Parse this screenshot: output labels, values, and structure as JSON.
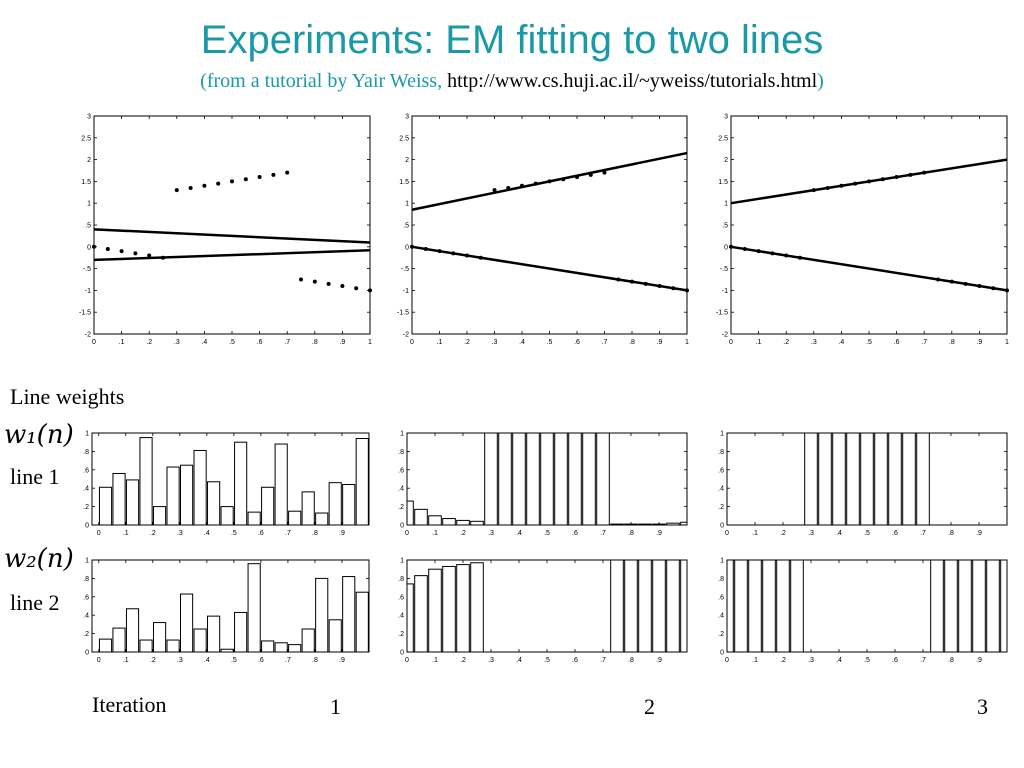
{
  "header": {
    "title": "Experiments: EM fitting to two lines",
    "subtitle_open": "(",
    "subtitle_credit": "from a tutorial by Yair Weiss, ",
    "subtitle_url": "http://www.cs.huji.ac.il/~yweiss/tutorials.html",
    "subtitle_close": ")"
  },
  "labels": {
    "line_weights": "Line weights",
    "w1": "w₁(n)",
    "w2": "w₂(n)",
    "line1": "line 1",
    "line2": "line 2",
    "iteration": "Iteration",
    "iterations": [
      "1",
      "2",
      "3"
    ]
  },
  "chart_data": [
    {
      "type": "scatter",
      "name": "iteration-1-fit",
      "xlim": [
        0,
        1
      ],
      "ylim": [
        -2,
        3
      ],
      "xticks": [
        0,
        0.1,
        0.2,
        0.3,
        0.4,
        0.5,
        0.6,
        0.7,
        0.8,
        0.9,
        1
      ],
      "yticks": [
        -2,
        -1.5,
        -1,
        -0.5,
        0,
        0.5,
        1,
        1.5,
        2,
        2.5,
        3
      ],
      "points": {
        "x": [
          0,
          0.05,
          0.1,
          0.15,
          0.2,
          0.25,
          0.3,
          0.35,
          0.4,
          0.45,
          0.5,
          0.55,
          0.6,
          0.65,
          0.7,
          0.75,
          0.8,
          0.85,
          0.9,
          0.95,
          1
        ],
        "y": [
          0,
          -0.05,
          -0.1,
          -0.15,
          -0.2,
          -0.25,
          1.3,
          1.35,
          1.4,
          1.45,
          1.5,
          1.55,
          1.6,
          1.65,
          1.7,
          -0.75,
          -0.8,
          -0.85,
          -0.9,
          -0.95,
          -1
        ]
      },
      "lines": [
        {
          "x": [
            0,
            1
          ],
          "y": [
            0.4,
            0.1
          ]
        },
        {
          "x": [
            0,
            1
          ],
          "y": [
            -0.3,
            -0.08
          ]
        }
      ]
    },
    {
      "type": "scatter",
      "name": "iteration-2-fit",
      "xlim": [
        0,
        1
      ],
      "ylim": [
        -2,
        3
      ],
      "xticks": [
        0,
        0.1,
        0.2,
        0.3,
        0.4,
        0.5,
        0.6,
        0.7,
        0.8,
        0.9,
        1
      ],
      "yticks": [
        -2,
        -1.5,
        -1,
        -0.5,
        0,
        0.5,
        1,
        1.5,
        2,
        2.5,
        3
      ],
      "points": {
        "x": [
          0,
          0.05,
          0.1,
          0.15,
          0.2,
          0.25,
          0.3,
          0.35,
          0.4,
          0.45,
          0.5,
          0.55,
          0.6,
          0.65,
          0.7,
          0.75,
          0.8,
          0.85,
          0.9,
          0.95,
          1
        ],
        "y": [
          0,
          -0.05,
          -0.1,
          -0.15,
          -0.2,
          -0.25,
          1.3,
          1.35,
          1.4,
          1.45,
          1.5,
          1.55,
          1.6,
          1.65,
          1.7,
          -0.75,
          -0.8,
          -0.85,
          -0.9,
          -0.95,
          -1
        ]
      },
      "lines": [
        {
          "x": [
            0,
            1
          ],
          "y": [
            0.85,
            2.15
          ]
        },
        {
          "x": [
            0,
            1
          ],
          "y": [
            0,
            -1
          ]
        }
      ]
    },
    {
      "type": "scatter",
      "name": "iteration-3-fit",
      "xlim": [
        0,
        1
      ],
      "ylim": [
        -2,
        3
      ],
      "xticks": [
        0,
        0.1,
        0.2,
        0.3,
        0.4,
        0.5,
        0.6,
        0.7,
        0.8,
        0.9,
        1
      ],
      "yticks": [
        -2,
        -1.5,
        -1,
        -0.5,
        0,
        0.5,
        1,
        1.5,
        2,
        2.5,
        3
      ],
      "points": {
        "x": [
          0,
          0.05,
          0.1,
          0.15,
          0.2,
          0.25,
          0.3,
          0.35,
          0.4,
          0.45,
          0.5,
          0.55,
          0.6,
          0.65,
          0.7,
          0.75,
          0.8,
          0.85,
          0.9,
          0.95,
          1
        ],
        "y": [
          0,
          -0.05,
          -0.1,
          -0.15,
          -0.2,
          -0.25,
          1.3,
          1.35,
          1.4,
          1.45,
          1.5,
          1.55,
          1.6,
          1.65,
          1.7,
          -0.75,
          -0.8,
          -0.85,
          -0.9,
          -0.95,
          -1
        ]
      },
      "lines": [
        {
          "x": [
            0,
            1
          ],
          "y": [
            1.0,
            2.0
          ]
        },
        {
          "x": [
            0,
            1
          ],
          "y": [
            0,
            -1
          ]
        }
      ]
    },
    {
      "type": "bar",
      "name": "iteration-1-line1-weights",
      "xlim": [
        -0.025,
        1.0
      ],
      "ylim": [
        0,
        1
      ],
      "xticks": [
        0,
        0.1,
        0.2,
        0.3,
        0.4,
        0.5,
        0.6,
        0.7,
        0.8,
        0.9
      ],
      "yticks": [
        0,
        0.2,
        0.4,
        0.6,
        0.8,
        1
      ],
      "x": [
        0.025,
        0.075,
        0.125,
        0.175,
        0.225,
        0.275,
        0.325,
        0.375,
        0.425,
        0.475,
        0.525,
        0.575,
        0.625,
        0.675,
        0.725,
        0.775,
        0.825,
        0.875,
        0.925,
        0.975
      ],
      "values": [
        0.41,
        0.56,
        0.49,
        0.95,
        0.2,
        0.63,
        0.65,
        0.81,
        0.47,
        0.2,
        0.9,
        0.14,
        0.41,
        0.88,
        0.15,
        0.36,
        0.13,
        0.46,
        0.44,
        0.94
      ]
    },
    {
      "type": "bar",
      "name": "iteration-2-line1-weights",
      "xlim": [
        0,
        1
      ],
      "ylim": [
        0,
        1
      ],
      "xticks": [
        0,
        0.1,
        0.2,
        0.3,
        0.4,
        0.5,
        0.6,
        0.7,
        0.8,
        0.9
      ],
      "yticks": [
        0,
        0.2,
        0.4,
        0.6,
        0.8,
        1
      ],
      "x": [
        0,
        0.05,
        0.1,
        0.15,
        0.2,
        0.25,
        0.3,
        0.35,
        0.4,
        0.45,
        0.5,
        0.55,
        0.6,
        0.65,
        0.7,
        0.75,
        0.8,
        0.85,
        0.9,
        0.95,
        1
      ],
      "values": [
        0.26,
        0.17,
        0.1,
        0.07,
        0.05,
        0.04,
        1,
        1,
        1,
        1,
        1,
        1,
        1,
        1,
        1,
        0.01,
        0.01,
        0.01,
        0.01,
        0.02,
        0.03
      ]
    },
    {
      "type": "bar",
      "name": "iteration-3-line1-weights",
      "xlim": [
        0,
        1
      ],
      "ylim": [
        0,
        1
      ],
      "xticks": [
        0,
        0.1,
        0.2,
        0.3,
        0.4,
        0.5,
        0.6,
        0.7,
        0.8,
        0.9
      ],
      "yticks": [
        0,
        0.2,
        0.4,
        0.6,
        0.8,
        1
      ],
      "x": [
        0,
        0.05,
        0.1,
        0.15,
        0.2,
        0.25,
        0.3,
        0.35,
        0.4,
        0.45,
        0.5,
        0.55,
        0.6,
        0.65,
        0.7,
        0.75,
        0.8,
        0.85,
        0.9,
        0.95,
        1
      ],
      "values": [
        0,
        0,
        0,
        0,
        0,
        0,
        1,
        1,
        1,
        1,
        1,
        1,
        1,
        1,
        1,
        0,
        0,
        0,
        0,
        0,
        0
      ]
    },
    {
      "type": "bar",
      "name": "iteration-1-line2-weights",
      "xlim": [
        -0.025,
        1.0
      ],
      "ylim": [
        0,
        1
      ],
      "xticks": [
        0,
        0.1,
        0.2,
        0.3,
        0.4,
        0.5,
        0.6,
        0.7,
        0.8,
        0.9
      ],
      "yticks": [
        0,
        0.2,
        0.4,
        0.6,
        0.8,
        1
      ],
      "x": [
        0.025,
        0.075,
        0.125,
        0.175,
        0.225,
        0.275,
        0.325,
        0.375,
        0.425,
        0.475,
        0.525,
        0.575,
        0.625,
        0.675,
        0.725,
        0.775,
        0.825,
        0.875,
        0.925,
        0.975
      ],
      "values": [
        0.14,
        0.26,
        0.47,
        0.13,
        0.32,
        0.13,
        0.63,
        0.25,
        0.39,
        0.03,
        0.43,
        0.96,
        0.12,
        0.1,
        0.08,
        0.25,
        0.8,
        0.35,
        0.82,
        0.65
      ]
    },
    {
      "type": "bar",
      "name": "iteration-2-line2-weights",
      "xlim": [
        0,
        1
      ],
      "ylim": [
        0,
        1
      ],
      "xticks": [
        0,
        0.1,
        0.2,
        0.3,
        0.4,
        0.5,
        0.6,
        0.7,
        0.8,
        0.9
      ],
      "yticks": [
        0,
        0.2,
        0.4,
        0.6,
        0.8,
        1
      ],
      "x": [
        0,
        0.05,
        0.1,
        0.15,
        0.2,
        0.25,
        0.3,
        0.35,
        0.4,
        0.45,
        0.5,
        0.55,
        0.6,
        0.65,
        0.7,
        0.75,
        0.8,
        0.85,
        0.9,
        0.95,
        1
      ],
      "values": [
        0.74,
        0.83,
        0.9,
        0.93,
        0.95,
        0.97,
        0,
        0,
        0,
        0,
        0,
        0,
        0,
        0,
        0,
        1,
        1,
        1,
        1,
        1,
        1
      ]
    },
    {
      "type": "bar",
      "name": "iteration-3-line2-weights",
      "xlim": [
        0,
        1
      ],
      "ylim": [
        0,
        1
      ],
      "xticks": [
        0,
        0.1,
        0.2,
        0.3,
        0.4,
        0.5,
        0.6,
        0.7,
        0.8,
        0.9
      ],
      "yticks": [
        0,
        0.2,
        0.4,
        0.6,
        0.8,
        1
      ],
      "x": [
        0,
        0.05,
        0.1,
        0.15,
        0.2,
        0.25,
        0.3,
        0.35,
        0.4,
        0.45,
        0.5,
        0.55,
        0.6,
        0.65,
        0.7,
        0.75,
        0.8,
        0.85,
        0.9,
        0.95,
        1
      ],
      "values": [
        1,
        1,
        1,
        1,
        1,
        1,
        0,
        0,
        0,
        0,
        0,
        0,
        0,
        0,
        0,
        1,
        1,
        1,
        1,
        1,
        1
      ]
    }
  ]
}
